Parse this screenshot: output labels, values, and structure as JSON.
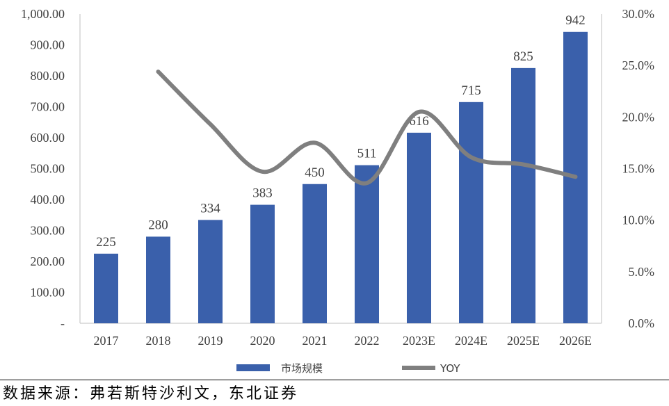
{
  "chart_data": {
    "type": "bar",
    "categories": [
      "2017",
      "2018",
      "2019",
      "2020",
      "2021",
      "2022",
      "2023E",
      "2024E",
      "2025E",
      "2026E"
    ],
    "series": [
      {
        "name": "市场规模",
        "type": "bar",
        "axis": "left",
        "values": [
          225,
          280,
          334,
          383,
          450,
          511,
          616,
          715,
          825,
          942
        ],
        "color": "#3a60ab"
      },
      {
        "name": "YOY",
        "type": "line",
        "axis": "right",
        "values": [
          null,
          24.4,
          19.3,
          14.7,
          17.5,
          13.6,
          20.5,
          16.1,
          15.4,
          14.2
        ],
        "color": "#7f7f7f"
      }
    ],
    "data_labels": [
      "225",
      "280",
      "334",
      "383",
      "450",
      "511",
      "616",
      "715",
      "825",
      "942"
    ],
    "ylim": [
      0,
      1000
    ],
    "y_ticks": [
      "-",
      "100.00",
      "200.00",
      "300.00",
      "400.00",
      "500.00",
      "600.00",
      "700.00",
      "800.00",
      "900.00",
      "1,000.00"
    ],
    "y2lim": [
      0,
      30
    ],
    "y2_ticks": [
      "0.0%",
      "5.0%",
      "10.0%",
      "15.0%",
      "20.0%",
      "25.0%",
      "30.0%"
    ],
    "grid": false,
    "legend_position": "bottom"
  },
  "source_text": "数据来源：弗若斯特沙利文，东北证券"
}
